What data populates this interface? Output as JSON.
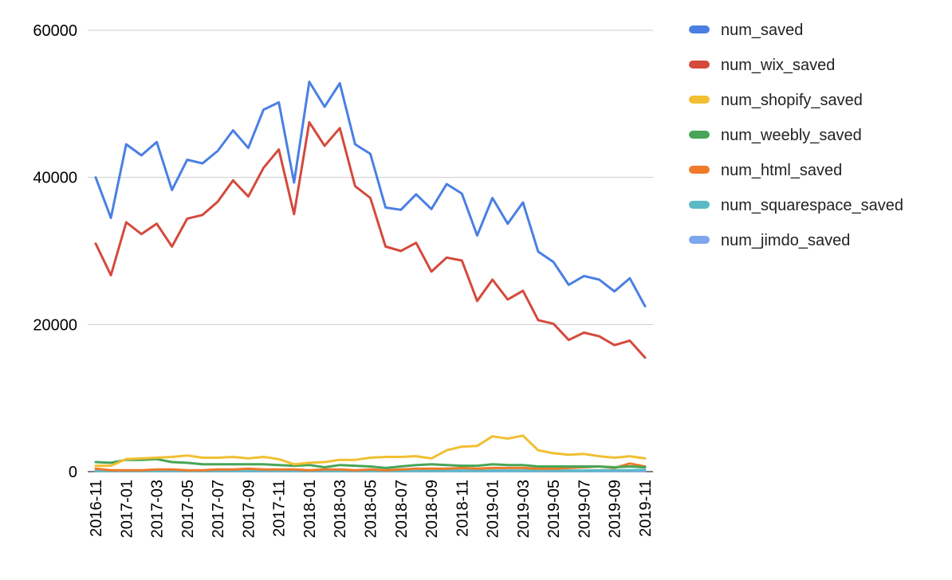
{
  "chart_data": {
    "type": "line",
    "title": "",
    "xlabel": "",
    "ylabel": "",
    "ylim": [
      0,
      60000
    ],
    "yticks": [
      0,
      20000,
      40000,
      60000
    ],
    "grid": true,
    "legend_position": "right",
    "categories": [
      "2016-11",
      "2016-12",
      "2017-01",
      "2017-02",
      "2017-03",
      "2017-04",
      "2017-05",
      "2017-06",
      "2017-07",
      "2017-08",
      "2017-09",
      "2017-10",
      "2017-11",
      "2017-12",
      "2018-01",
      "2018-02",
      "2018-03",
      "2018-04",
      "2018-05",
      "2018-06",
      "2018-07",
      "2018-08",
      "2018-09",
      "2018-10",
      "2018-11",
      "2018-12",
      "2019-01",
      "2019-02",
      "2019-03",
      "2019-04",
      "2019-05",
      "2019-06",
      "2019-07",
      "2019-08",
      "2019-09",
      "2019-10",
      "2019-11"
    ],
    "xtick_labels": [
      "2016-11",
      "2017-01",
      "2017-03",
      "2017-05",
      "2017-07",
      "2017-09",
      "2017-11",
      "2018-01",
      "2018-03",
      "2018-05",
      "2018-07",
      "2018-09",
      "2018-11",
      "2019-01",
      "2019-03",
      "2019-05",
      "2019-07",
      "2019-09",
      "2019-11"
    ],
    "series": [
      {
        "name": "num_saved",
        "color": "#4a7fe3",
        "values": [
          40000,
          34500,
          44500,
          43000,
          44800,
          38300,
          42400,
          41900,
          43600,
          46400,
          44000,
          49200,
          50200,
          39300,
          53000,
          49600,
          52800,
          44500,
          43200,
          35900,
          35600,
          37700,
          35700,
          39100,
          37800,
          32100,
          37200,
          33700,
          36600,
          29900,
          28500,
          25400,
          26600,
          26100,
          24500,
          26300,
          22500
        ]
      },
      {
        "name": "num_wix_saved",
        "color": "#d44a3c",
        "values": [
          31000,
          26700,
          33900,
          32300,
          33700,
          30600,
          34400,
          34900,
          36700,
          39600,
          37400,
          41300,
          43800,
          35000,
          47500,
          44300,
          46700,
          38800,
          37200,
          30600,
          30000,
          31100,
          27200,
          29100,
          28700,
          23200,
          26100,
          23400,
          24600,
          20600,
          20100,
          17900,
          18900,
          18400,
          17200,
          17800,
          15500
        ]
      },
      {
        "name": "num_shopify_saved",
        "color": "#f1bf31",
        "values": [
          800,
          800,
          1700,
          1800,
          1900,
          2000,
          2200,
          1900,
          1900,
          2000,
          1800,
          2000,
          1700,
          1000,
          1200,
          1300,
          1600,
          1600,
          1900,
          2000,
          2000,
          2100,
          1800,
          2900,
          3400,
          3500,
          4800,
          4500,
          4900,
          2900,
          2500,
          2300,
          2400,
          2100,
          1900,
          2100,
          1800
        ]
      },
      {
        "name": "num_weebly_saved",
        "color": "#48a557",
        "values": [
          1300,
          1200,
          1600,
          1600,
          1700,
          1300,
          1200,
          1000,
          1000,
          1000,
          1000,
          1000,
          900,
          800,
          900,
          600,
          900,
          800,
          700,
          500,
          700,
          900,
          1000,
          900,
          800,
          800,
          1000,
          900,
          900,
          700,
          700,
          700,
          700,
          700,
          600,
          700,
          600
        ]
      },
      {
        "name": "num_html_saved",
        "color": "#ef7a2a",
        "values": [
          400,
          200,
          200,
          200,
          300,
          300,
          200,
          200,
          300,
          300,
          400,
          300,
          300,
          300,
          200,
          300,
          300,
          200,
          300,
          200,
          300,
          400,
          400,
          400,
          500,
          400,
          500,
          500,
          500,
          400,
          400,
          500,
          600,
          700,
          500,
          1100,
          700
        ]
      },
      {
        "name": "num_squarespace_saved",
        "color": "#5ab9c5",
        "values": [
          100,
          100,
          100,
          100,
          100,
          100,
          100,
          100,
          100,
          100,
          100,
          100,
          100,
          100,
          100,
          100,
          100,
          100,
          100,
          100,
          100,
          100,
          100,
          150,
          150,
          150,
          150,
          150,
          150,
          150,
          150,
          150,
          150,
          200,
          200,
          200,
          250
        ]
      },
      {
        "name": "num_jimdo_saved",
        "color": "#7ea6ef",
        "values": [
          100,
          80,
          80,
          80,
          80,
          80,
          80,
          80,
          80,
          80,
          80,
          80,
          80,
          80,
          80,
          80,
          80,
          80,
          80,
          80,
          80,
          80,
          80,
          80,
          80,
          80,
          80,
          80,
          80,
          80,
          80,
          80,
          80,
          80,
          80,
          80,
          80
        ]
      }
    ]
  }
}
